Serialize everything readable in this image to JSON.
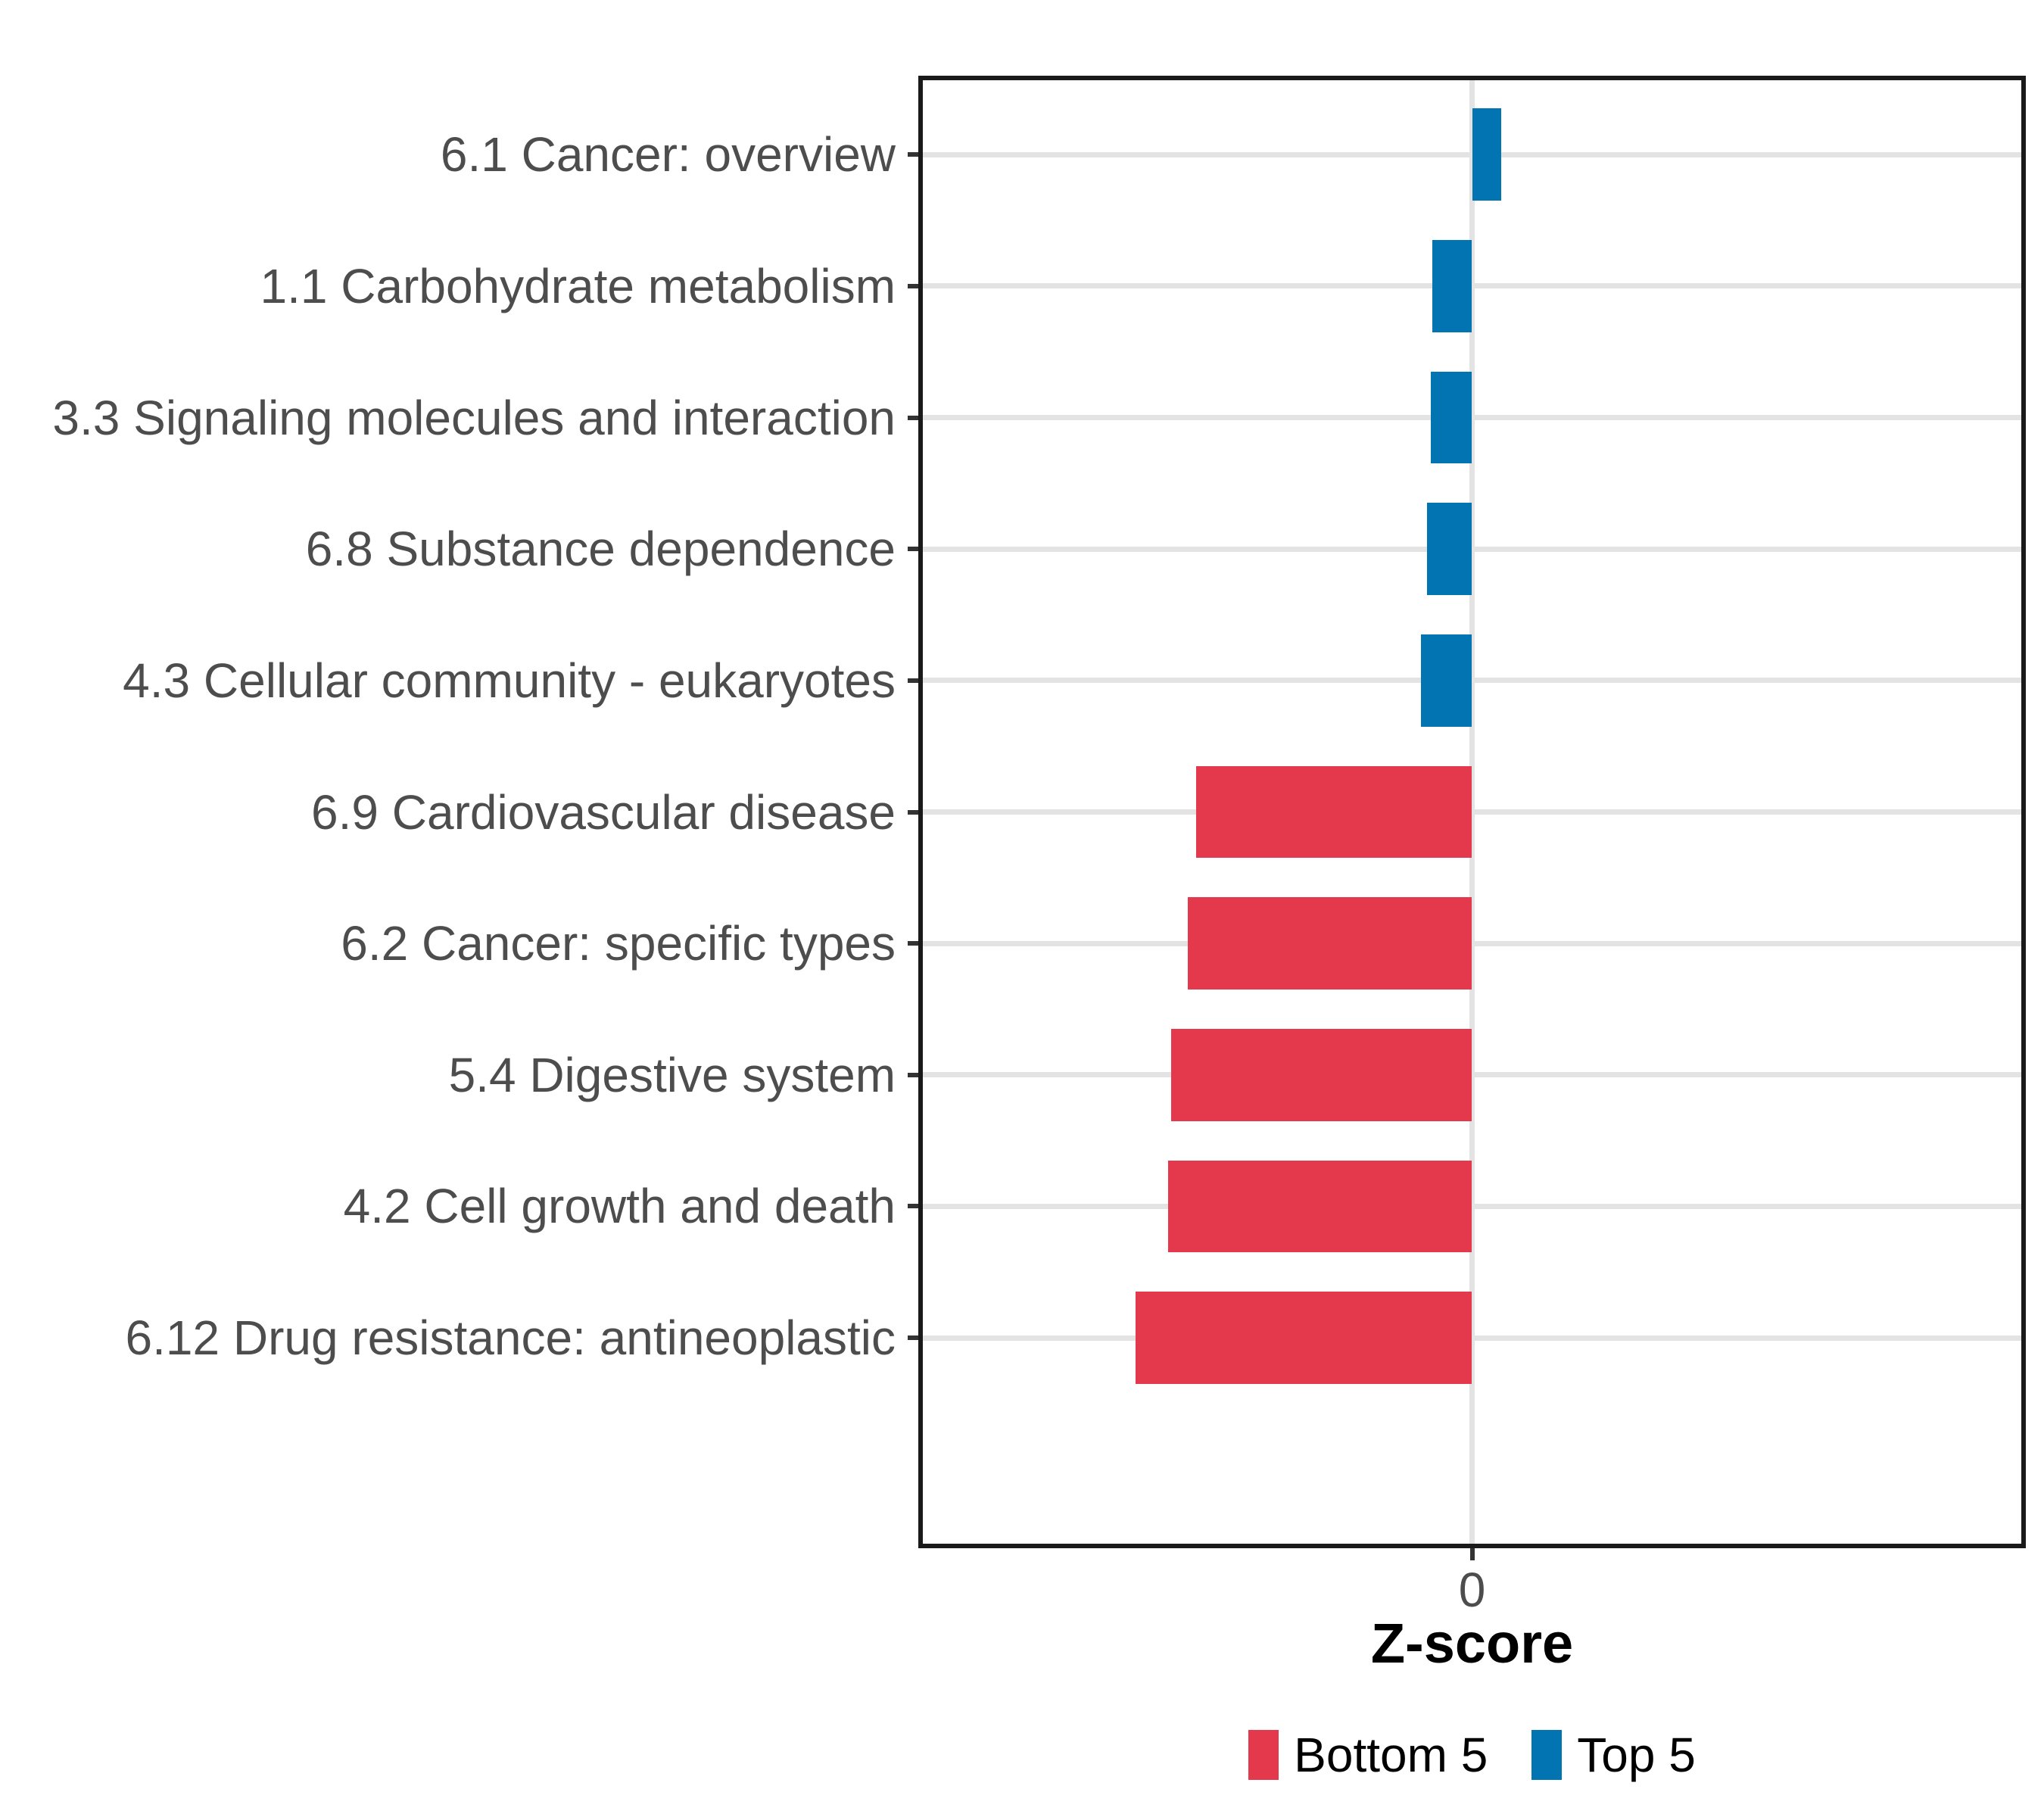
{
  "chart_data": {
    "type": "bar",
    "orientation": "horizontal",
    "title": "",
    "xlabel": "Z-score",
    "ylabel": "",
    "categories": [
      "6.1 Cancer: overview",
      "1.1 Carbohydrate metabolism",
      "3.3 Signaling molecules and interaction",
      "6.8 Substance dependence",
      "4.3 Cellular community - eukaryotes",
      "6.9 Cardiovascular disease",
      "6.2 Cancer: specific types",
      "5.4 Digestive system",
      "4.2 Cell growth and death",
      "6.12 Drug resistance: antineoplastic"
    ],
    "values": [
      0.53,
      -0.72,
      -0.74,
      -0.82,
      -0.92,
      -4.98,
      -5.13,
      -5.43,
      -5.49,
      -6.08
    ],
    "groups": [
      "Top 5",
      "Top 5",
      "Top 5",
      "Top 5",
      "Top 5",
      "Bottom 5",
      "Bottom 5",
      "Bottom 5",
      "Bottom 5",
      "Bottom 5"
    ],
    "xlim": [
      -10,
      10
    ],
    "x_ticks": [
      {
        "value": 0,
        "label": "0"
      }
    ],
    "bar_width_fraction": 0.7,
    "grid": {
      "horizontal_major": true,
      "vertical_zero": true
    },
    "legend": {
      "position": "bottom",
      "entries": [
        {
          "label": "Bottom 5",
          "color": "#E4394D"
        },
        {
          "label": "Top 5",
          "color": "#0274B2"
        }
      ]
    },
    "colors": {
      "bottom5": "#E4394D",
      "top5": "#0274B2",
      "grid": "#E3E3E3",
      "panel_border": "#1A1A1A",
      "axis_text": "#4D4D4D",
      "tick_mark": "#333333",
      "axis_title": "#000000",
      "background": "#FFFFFF"
    }
  }
}
